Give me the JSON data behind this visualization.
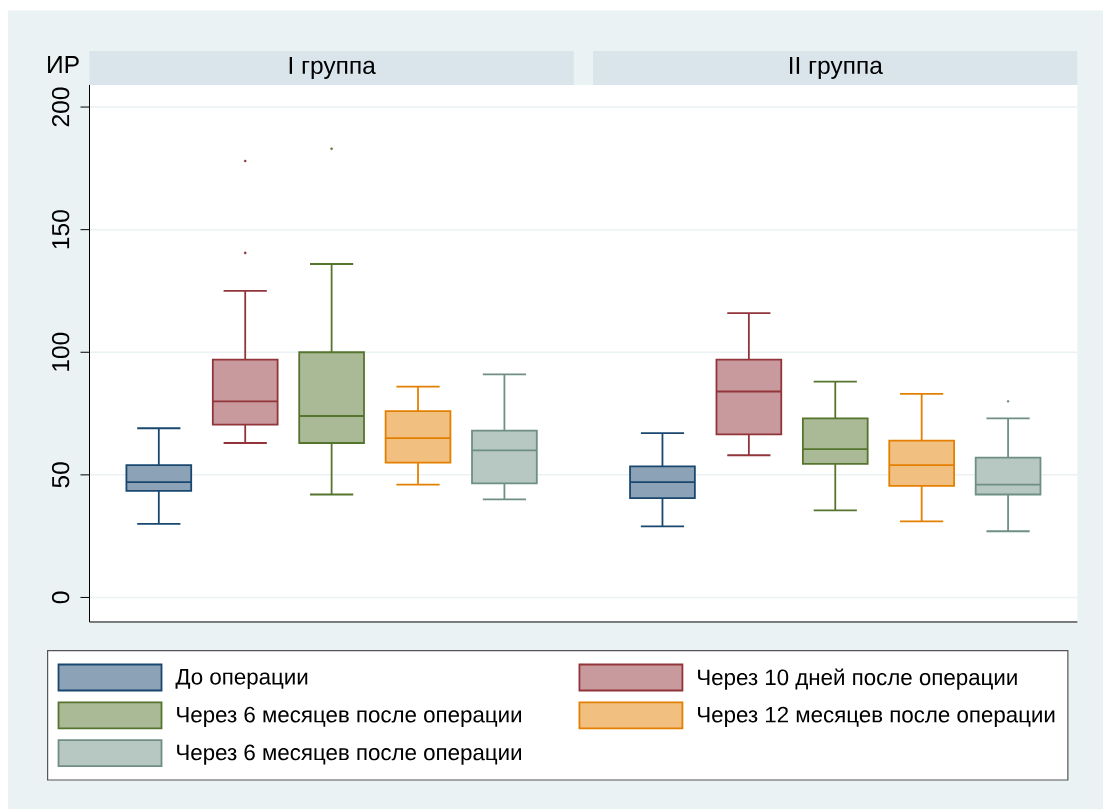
{
  "chart_data": {
    "type": "box",
    "ylabel": "ИР",
    "categories": [
      "I группа",
      "II группа"
    ],
    "ylim": [
      -10,
      209
    ],
    "yticks": [
      0,
      50,
      100,
      150,
      200
    ],
    "grid": "y",
    "legend": "bottom",
    "series": [
      {
        "name": "До операции",
        "color": "#8ca3b7",
        "boxes": [
          {
            "low": 30,
            "q1": 43.5,
            "median": 47,
            "q3": 54,
            "high": 69
          },
          {
            "low": 29,
            "q1": 40.5,
            "median": 47,
            "q3": 53.5,
            "high": 67
          }
        ]
      },
      {
        "name": "Через 10 дней после операции",
        "color": "#c89a9d",
        "boxes": [
          {
            "low": 63,
            "q1": 70.5,
            "median": 80,
            "q3": 97,
            "high": 125,
            "outliers": [
              178,
              140.5
            ]
          },
          {
            "low": 58,
            "q1": 66.5,
            "median": 84,
            "q3": 97,
            "high": 116
          }
        ]
      },
      {
        "name": "Через 6 месяцев после операции",
        "color": "#aaba97",
        "boxes": [
          {
            "low": 42,
            "q1": 63,
            "median": 74,
            "q3": 100,
            "high": 136,
            "outliers": [
              183
            ]
          },
          {
            "low": 35.5,
            "q1": 54.5,
            "median": 60.5,
            "q3": 73,
            "high": 88
          }
        ]
      },
      {
        "name": "Через 12 месяцев после операции",
        "color": "#f1bf80",
        "boxes": [
          {
            "low": 46,
            "q1": 55,
            "median": 65,
            "q3": 76,
            "high": 86
          },
          {
            "low": 31,
            "q1": 45.5,
            "median": 54,
            "q3": 64,
            "high": 83
          }
        ]
      },
      {
        "name": "Через 6 месяцев после операции",
        "color": "#b7c7c1",
        "boxes": [
          {
            "low": 40,
            "q1": 46.5,
            "median": 60,
            "q3": 68,
            "high": 91
          },
          {
            "low": 27,
            "q1": 42,
            "median": 46,
            "q3": 57,
            "high": 73,
            "outliers": [
              80
            ]
          }
        ]
      }
    ]
  }
}
